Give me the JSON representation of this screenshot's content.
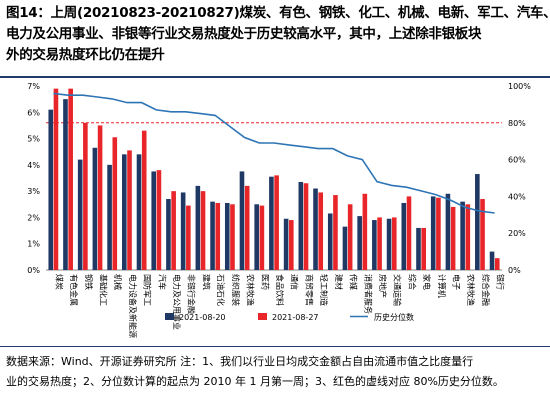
{
  "title": {
    "lines": [
      "图14：上周(20210823-20210827)煤炭、有色、钢铁、化工、机械、电新、军工、汽车、",
      "电力及公用事业、非银等行业交易热度处于历史较高水平，其中，上述除非银板块",
      "外的交易热度环比仍在提升"
    ]
  },
  "footer": {
    "lines": [
      "数据来源：Wind、开源证券研究所 注：1、我们以行业日均成交金额占自由流通市值之比度量行",
      "业的交易热度；2、分位数计算的起点为 2010 年 1 月第一周；3、红色的虚线对应 80%历史分位数。"
    ]
  },
  "chart_data": {
    "type": "bar",
    "categories": [
      "煤炭",
      "有色金属",
      "钢铁",
      "基础化工",
      "机械",
      "电力设备及新能源",
      "国防军工",
      "汽车",
      "电力及公用事业",
      "非银行金融",
      "建筑",
      "石油石化",
      "纺织服装",
      "农林牧渔",
      "医药",
      "食品饮料",
      "通信",
      "商贸零售",
      "轻工制造",
      "建材",
      "传媒",
      "消费者服务",
      "房地产",
      "交通运输",
      "综合",
      "家电",
      "计算机",
      "电子",
      "农林牧渔",
      "综合金融",
      "银行"
    ],
    "categories_display": [
      "煤炭",
      "有色金属",
      "钢铁",
      "基础化工",
      "机械",
      "电力设备及新能源",
      "国防军工",
      "汽车",
      "电力及公用事业",
      "非银行金融",
      "建筑",
      "石油石化",
      "纺织服装",
      "农林牧渔",
      "医药",
      "食品饮料",
      "通信",
      "商贸零售",
      "轻工制造",
      "建材",
      "传媒",
      "消费者服务",
      "房地产",
      "交通运输",
      "综合",
      "家电",
      "计算机",
      "电子",
      "农林牧渔",
      "综合金融",
      "银行"
    ],
    "series": [
      {
        "name": "2021-08-20",
        "values": [
          6.1,
          6.5,
          4.2,
          4.65,
          4.0,
          4.4,
          4.4,
          3.75,
          2.7,
          2.95,
          3.2,
          2.6,
          2.55,
          3.75,
          2.5,
          3.55,
          1.95,
          3.35,
          3.1,
          2.15,
          1.65,
          2.05,
          1.9,
          1.95,
          2.55,
          1.6,
          2.8,
          2.9,
          2.6,
          3.65,
          0.7
        ]
      },
      {
        "name": "2021-08-27",
        "values": [
          6.9,
          6.9,
          5.6,
          5.5,
          5.05,
          4.55,
          5.3,
          3.8,
          3.0,
          2.45,
          3.0,
          2.55,
          2.5,
          3.2,
          2.45,
          3.6,
          1.9,
          3.3,
          2.95,
          2.85,
          2.5,
          2.9,
          2.0,
          2.0,
          2.8,
          1.6,
          2.75,
          2.4,
          2.5,
          2.7,
          0.45
        ]
      },
      {
        "name": "历史分位数",
        "axis": "right",
        "values": [
          96,
          95,
          95,
          94,
          93,
          91,
          91,
          87,
          86,
          86,
          85,
          84,
          78,
          72,
          69,
          69,
          68,
          67,
          66,
          66,
          62,
          60,
          48,
          46,
          45,
          43,
          41,
          38,
          34,
          32,
          31
        ]
      }
    ],
    "ylim_left": [
      0,
      7
    ],
    "ylim_right": [
      0,
      100
    ],
    "y_ticks_left": [
      "0%",
      "1%",
      "2%",
      "3%",
      "4%",
      "5%",
      "6%",
      "7%"
    ],
    "y_ticks_right": [
      "0%",
      "20%",
      "40%",
      "60%",
      "80%",
      "100%"
    ],
    "reference_line": {
      "value": 80,
      "axis": "right",
      "color": "#e8262a",
      "style": "dashed"
    },
    "legend": [
      "2021-08-20",
      "2021-08-27",
      "历史分位数"
    ],
    "legend_position": "bottom",
    "colors": {
      "series1": "#1f3864",
      "series2": "#e8262a",
      "line": "#2e75b6"
    }
  }
}
